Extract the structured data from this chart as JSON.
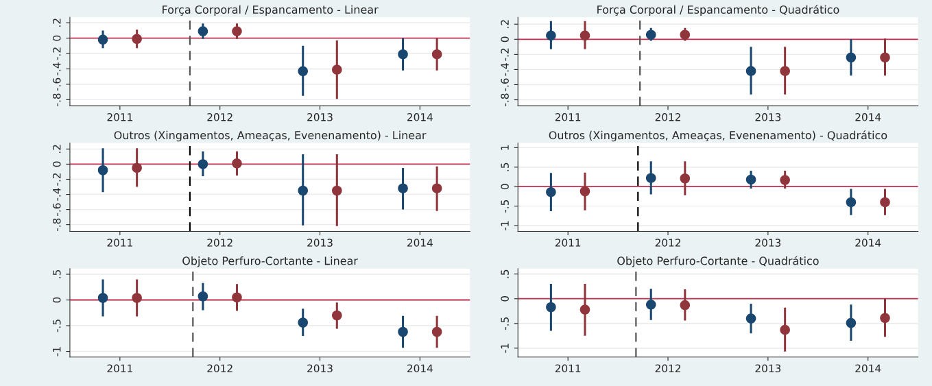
{
  "chart_data": [
    {
      "type": "scatter",
      "title": "Força Corporal / Espancamento - Linear",
      "xlim": [
        2010.5,
        2014.5
      ],
      "xticks": [
        2011,
        2012,
        2013,
        2014
      ],
      "ylim": [
        -0.88,
        0.27
      ],
      "yticks": [
        {
          "value": -0.8,
          "label": "-.8"
        },
        {
          "value": -0.6,
          "label": "-.6"
        },
        {
          "value": -0.4,
          "label": "-.4"
        },
        {
          "value": -0.2,
          "label": "-.2"
        },
        0,
        {
          "value": 0.2,
          "label": ".2"
        }
      ],
      "grid": "y",
      "marker": "circle",
      "ref_lines": [
        {
          "axis": "y",
          "value": 0,
          "color": "#c0304f",
          "line_style": "solid"
        },
        {
          "axis": "x",
          "value": 2011.7,
          "color": "#555555",
          "line_style": "dashed"
        }
      ],
      "series": [
        {
          "color": "#1a476f",
          "x": [
            2010.83,
            2011.83,
            2012.83,
            2013.83
          ],
          "values": [
            -0.02,
            0.09,
            -0.43,
            -0.21
          ],
          "errors": [
            [
              -0.13,
              0.1
            ],
            [
              -0.01,
              0.19
            ],
            [
              -0.75,
              -0.1
            ],
            [
              -0.42,
              0.0
            ]
          ]
        },
        {
          "color": "#90353b",
          "x": [
            2011.17,
            2012.17,
            2013.17,
            2014.17
          ],
          "values": [
            -0.01,
            0.09,
            -0.41,
            -0.21
          ],
          "errors": [
            [
              -0.13,
              0.11
            ],
            [
              -0.01,
              0.19
            ],
            [
              -0.79,
              -0.03
            ],
            [
              -0.42,
              0.0
            ]
          ]
        }
      ]
    },
    {
      "type": "scatter",
      "title": "Força Corporal / Espancamento - Quadrático",
      "xlim": [
        2010.5,
        2014.5
      ],
      "xticks": [
        2011,
        2012,
        2013,
        2014
      ],
      "ylim": [
        -0.88,
        0.29
      ],
      "yticks": [
        {
          "value": -0.8,
          "label": "-.8"
        },
        {
          "value": -0.6,
          "label": "-.6"
        },
        {
          "value": -0.4,
          "label": "-.4"
        },
        {
          "value": -0.2,
          "label": "-.2"
        },
        0,
        {
          "value": 0.2,
          "label": ".2"
        }
      ],
      "grid": "y",
      "marker": "circle",
      "ref_lines": [
        {
          "axis": "y",
          "value": 0,
          "color": "#c0304f",
          "line_style": "solid"
        },
        {
          "axis": "x",
          "value": 2011.72,
          "color": "#555555",
          "line_style": "dashed"
        }
      ],
      "series": [
        {
          "color": "#1a476f",
          "x": [
            2010.83,
            2011.83,
            2012.83,
            2013.83
          ],
          "values": [
            0.05,
            0.06,
            -0.42,
            -0.24
          ],
          "errors": [
            [
              -0.13,
              0.24
            ],
            [
              -0.02,
              0.15
            ],
            [
              -0.73,
              -0.1
            ],
            [
              -0.48,
              0.0
            ]
          ]
        },
        {
          "color": "#90353b",
          "x": [
            2011.17,
            2012.17,
            2013.17,
            2014.17
          ],
          "values": [
            0.05,
            0.06,
            -0.42,
            -0.24
          ],
          "errors": [
            [
              -0.13,
              0.24
            ],
            [
              -0.02,
              0.15
            ],
            [
              -0.73,
              -0.1
            ],
            [
              -0.48,
              0.01
            ]
          ]
        }
      ]
    },
    {
      "type": "scatter",
      "title": "Outros (Xingamentos, Ameaças, Evenenamento) - Linear",
      "xlim": [
        2010.5,
        2014.5
      ],
      "xticks": [
        2011,
        2012,
        2013,
        2014
      ],
      "ylim": [
        -0.89,
        0.28
      ],
      "yticks": [
        {
          "value": -0.8,
          "label": "-.8"
        },
        {
          "value": -0.6,
          "label": "-.6"
        },
        {
          "value": -0.4,
          "label": "-.4"
        },
        {
          "value": -0.2,
          "label": "-.2"
        },
        0,
        {
          "value": 0.2,
          "label": ".2"
        }
      ],
      "grid": "y",
      "marker": "circle",
      "ref_lines": [
        {
          "axis": "y",
          "value": 0,
          "color": "#c0304f",
          "line_style": "solid"
        },
        {
          "axis": "x",
          "value": 2011.7,
          "color": "#000000",
          "line_style": "dashed"
        }
      ],
      "series": [
        {
          "color": "#1a476f",
          "x": [
            2010.83,
            2011.83,
            2012.83,
            2013.83
          ],
          "values": [
            -0.08,
            0.0,
            -0.35,
            -0.32
          ],
          "errors": [
            [
              -0.37,
              0.21
            ],
            [
              -0.16,
              0.17
            ],
            [
              -0.81,
              0.13
            ],
            [
              -0.6,
              -0.05
            ]
          ]
        },
        {
          "color": "#90353b",
          "x": [
            2011.17,
            2012.17,
            2013.17,
            2014.17
          ],
          "values": [
            -0.05,
            0.01,
            -0.35,
            -0.32
          ],
          "errors": [
            [
              -0.3,
              0.21
            ],
            [
              -0.15,
              0.17
            ],
            [
              -0.82,
              0.13
            ],
            [
              -0.62,
              -0.03
            ]
          ]
        }
      ]
    },
    {
      "type": "scatter",
      "title": "Outros (Xingamentos, Ameaças, Evenenamento) - Quadrático",
      "xlim": [
        2010.5,
        2014.5
      ],
      "xticks": [
        2011,
        2012,
        2013,
        2014
      ],
      "ylim": [
        -1.15,
        1.12
      ],
      "yticks": [
        -1,
        {
          "value": -0.5,
          "label": "-.5"
        },
        0,
        {
          "value": 0.5,
          "label": ".5"
        },
        1
      ],
      "grid": "y",
      "marker": "circle",
      "ref_lines": [
        {
          "axis": "y",
          "value": 0,
          "color": "#c0304f",
          "line_style": "solid"
        },
        {
          "axis": "x",
          "value": 2011.7,
          "color": "#000000",
          "line_style": "dashed"
        }
      ],
      "series": [
        {
          "color": "#1a476f",
          "x": [
            2010.83,
            2011.83,
            2012.83,
            2013.83
          ],
          "values": [
            -0.14,
            0.22,
            0.18,
            -0.4
          ],
          "errors": [
            [
              -0.63,
              0.35
            ],
            [
              -0.2,
              0.65
            ],
            [
              -0.05,
              0.41
            ],
            [
              -0.73,
              -0.06
            ]
          ]
        },
        {
          "color": "#90353b",
          "x": [
            2011.17,
            2012.17,
            2013.17,
            2014.17
          ],
          "values": [
            -0.12,
            0.21,
            0.17,
            -0.4
          ],
          "errors": [
            [
              -0.61,
              0.36
            ],
            [
              -0.22,
              0.65
            ],
            [
              -0.05,
              0.41
            ],
            [
              -0.73,
              -0.06
            ]
          ]
        }
      ]
    },
    {
      "type": "scatter",
      "title": "Objeto Perfuro-Cortante - Linear",
      "xlim": [
        2010.5,
        2014.5
      ],
      "xticks": [
        2011,
        2012,
        2013,
        2014
      ],
      "ylim": [
        -1.11,
        0.61
      ],
      "yticks": [
        -1,
        {
          "value": -0.5,
          "label": "-.5"
        },
        0,
        {
          "value": 0.5,
          "label": ".5"
        }
      ],
      "grid": "y",
      "marker": "circle",
      "ref_lines": [
        {
          "axis": "y",
          "value": 0,
          "color": "#c0304f",
          "line_style": "solid"
        },
        {
          "axis": "x",
          "value": 2011.73,
          "color": "#555555",
          "line_style": "dashed"
        }
      ],
      "series": [
        {
          "color": "#1a476f",
          "x": [
            2010.83,
            2011.83,
            2012.83,
            2013.83
          ],
          "values": [
            0.04,
            0.07,
            -0.44,
            -0.62
          ],
          "errors": [
            [
              -0.32,
              0.4
            ],
            [
              -0.2,
              0.33
            ],
            [
              -0.7,
              -0.17
            ],
            [
              -0.93,
              -0.31
            ]
          ]
        },
        {
          "color": "#90353b",
          "x": [
            2011.17,
            2012.17,
            2013.17,
            2014.17
          ],
          "values": [
            0.04,
            0.05,
            -0.3,
            -0.62
          ],
          "errors": [
            [
              -0.32,
              0.4
            ],
            [
              -0.21,
              0.31
            ],
            [
              -0.56,
              -0.05
            ],
            [
              -0.93,
              -0.31
            ]
          ]
        }
      ]
    },
    {
      "type": "scatter",
      "title": "Objeto Perfuro-Cortante - Quadrático",
      "xlim": [
        2010.5,
        2014.5
      ],
      "xticks": [
        2011,
        2012,
        2013,
        2014
      ],
      "ylim": [
        -1.18,
        0.61
      ],
      "yticks": [
        -1,
        {
          "value": -0.5,
          "label": "-.5"
        },
        0,
        {
          "value": 0.5,
          "label": ".5"
        }
      ],
      "grid": "y",
      "marker": "circle",
      "ref_lines": [
        {
          "axis": "y",
          "value": 0,
          "color": "#c0304f",
          "line_style": "solid"
        },
        {
          "axis": "x",
          "value": 2011.68,
          "color": "#555555",
          "line_style": "dashed"
        }
      ],
      "series": [
        {
          "color": "#1a476f",
          "x": [
            2010.83,
            2011.83,
            2012.83,
            2013.83
          ],
          "values": [
            -0.17,
            -0.12,
            -0.4,
            -0.49
          ],
          "errors": [
            [
              -0.65,
              0.3
            ],
            [
              -0.43,
              0.2
            ],
            [
              -0.7,
              -0.1
            ],
            [
              -0.85,
              -0.12
            ]
          ]
        },
        {
          "color": "#90353b",
          "x": [
            2011.17,
            2012.17,
            2013.17,
            2014.17
          ],
          "values": [
            -0.22,
            -0.13,
            -0.63,
            -0.39
          ],
          "errors": [
            [
              -0.75,
              0.3
            ],
            [
              -0.44,
              0.19
            ],
            [
              -1.07,
              -0.18
            ],
            [
              -0.77,
              0.0
            ]
          ]
        }
      ]
    }
  ]
}
